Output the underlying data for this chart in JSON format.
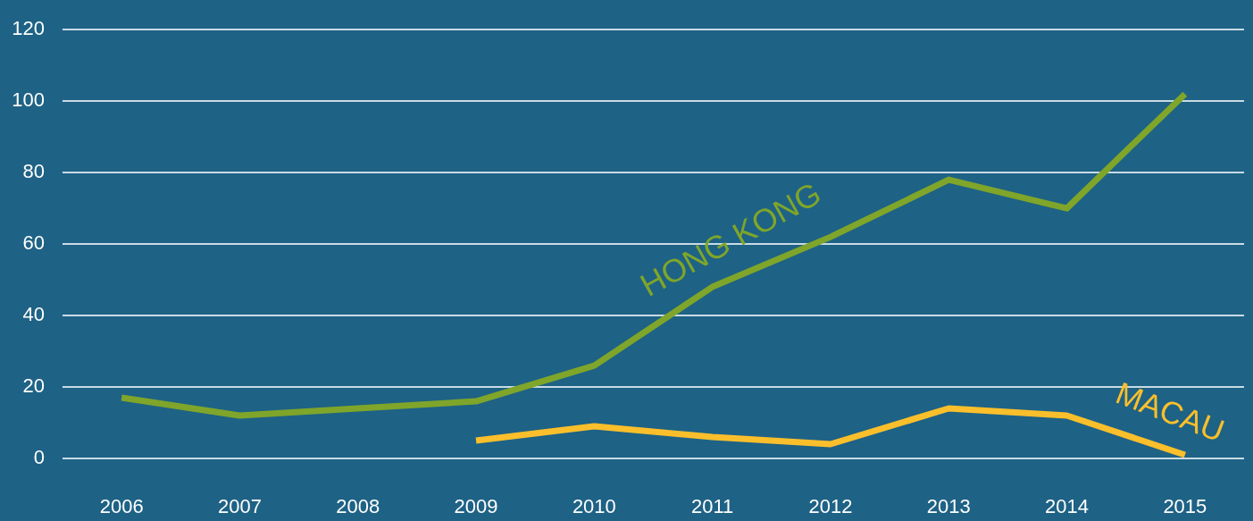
{
  "chart_data": {
    "type": "line",
    "categories": [
      "2006",
      "2007",
      "2008",
      "2009",
      "2010",
      "2011",
      "2012",
      "2013",
      "2014",
      "2015"
    ],
    "series": [
      {
        "name": "HONG KONG",
        "color": "#7fa52a",
        "values": [
          17,
          12,
          14,
          16,
          26,
          48,
          62,
          78,
          70,
          102
        ]
      },
      {
        "name": "MACAU",
        "color": "#fbbf2b",
        "values": [
          null,
          null,
          null,
          5,
          9,
          6,
          4,
          14,
          12,
          1
        ]
      }
    ],
    "ylim": [
      0,
      120
    ],
    "yticks": [
      0,
      20,
      40,
      60,
      80,
      100,
      120
    ],
    "grid": "y",
    "marker": "none",
    "line_style": "solid"
  }
}
